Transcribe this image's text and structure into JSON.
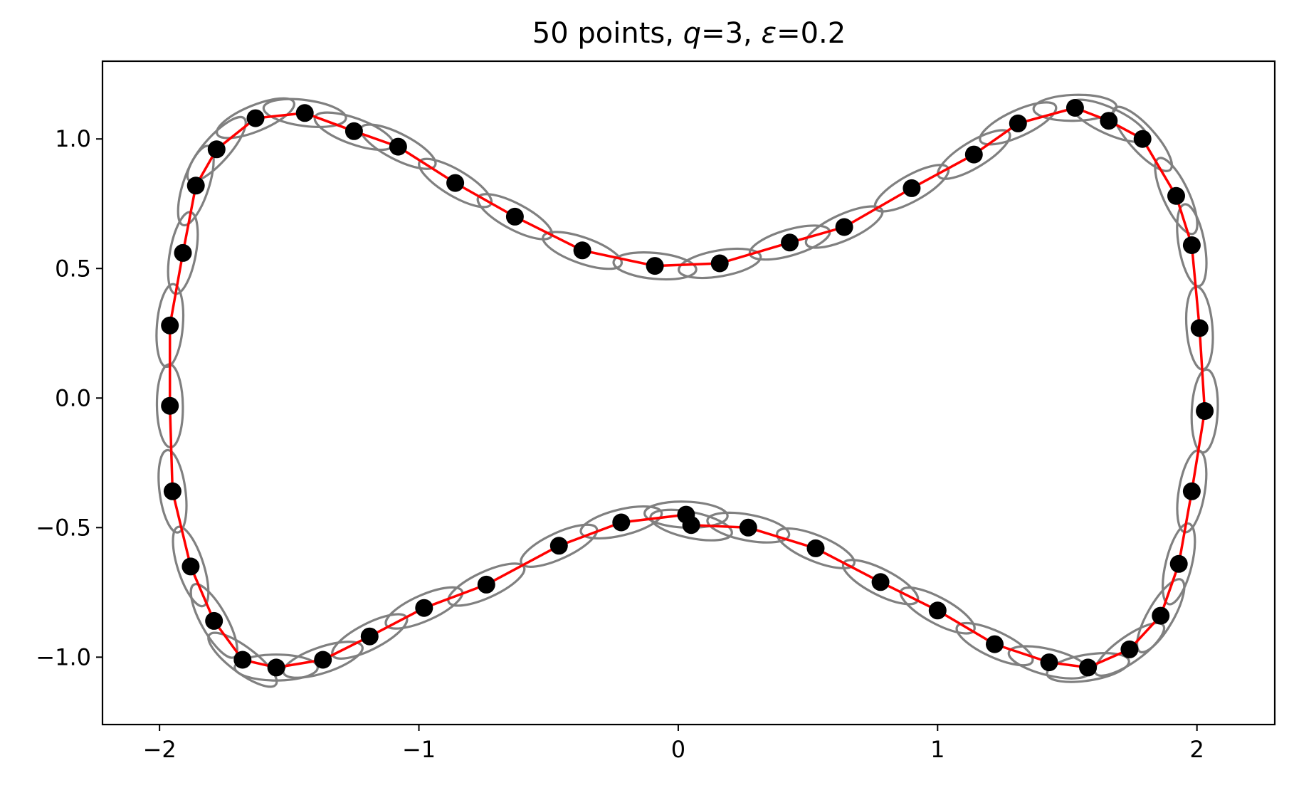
{
  "chart_data": {
    "type": "scatter",
    "title": "50 points, q=3, ε=0.2",
    "title_parts": [
      "50 points, ",
      "q",
      "=3, ",
      "ε",
      "=0.2"
    ],
    "xlabel": "",
    "ylabel": "",
    "xlim": [
      -2.22,
      2.3
    ],
    "ylim": [
      -1.26,
      1.3
    ],
    "xticks": [
      -2,
      -1,
      0,
      1,
      2
    ],
    "xtick_labels": [
      "−2",
      "−1",
      "0",
      "1",
      "2"
    ],
    "yticks": [
      1.0,
      0.5,
      0.0,
      -0.5,
      -1.0
    ],
    "ytick_labels": [
      "1.0",
      "0.5",
      "0.0",
      "−0.5",
      "−1.0"
    ],
    "grid": false,
    "colors": {
      "points": "#000000",
      "curve": "#ff0000",
      "ellipses": "#808080"
    },
    "points": [
      [
        -1.63,
        1.08
      ],
      [
        -1.44,
        1.1
      ],
      [
        -1.25,
        1.03
      ],
      [
        -1.08,
        0.97
      ],
      [
        -0.86,
        0.83
      ],
      [
        -0.63,
        0.7
      ],
      [
        -0.37,
        0.57
      ],
      [
        -0.09,
        0.51
      ],
      [
        0.16,
        0.52
      ],
      [
        0.43,
        0.6
      ],
      [
        0.64,
        0.66
      ],
      [
        0.9,
        0.81
      ],
      [
        1.14,
        0.94
      ],
      [
        1.31,
        1.06
      ],
      [
        1.53,
        1.12
      ],
      [
        1.66,
        1.07
      ],
      [
        1.79,
        1.0
      ],
      [
        1.92,
        0.78
      ],
      [
        1.98,
        0.59
      ],
      [
        2.01,
        0.27
      ],
      [
        2.03,
        -0.05
      ],
      [
        1.98,
        -0.36
      ],
      [
        1.93,
        -0.64
      ],
      [
        1.86,
        -0.84
      ],
      [
        1.74,
        -0.97
      ],
      [
        1.58,
        -1.04
      ],
      [
        1.43,
        -1.02
      ],
      [
        1.22,
        -0.95
      ],
      [
        1.0,
        -0.82
      ],
      [
        0.78,
        -0.71
      ],
      [
        0.53,
        -0.58
      ],
      [
        0.27,
        -0.5
      ],
      [
        0.05,
        -0.49
      ],
      [
        0.03,
        -0.45
      ],
      [
        -0.22,
        -0.48
      ],
      [
        -0.46,
        -0.57
      ],
      [
        -0.74,
        -0.72
      ],
      [
        -0.98,
        -0.81
      ],
      [
        -1.19,
        -0.92
      ],
      [
        -1.37,
        -1.01
      ],
      [
        -1.55,
        -1.04
      ],
      [
        -1.68,
        -1.01
      ],
      [
        -1.79,
        -0.86
      ],
      [
        -1.88,
        -0.65
      ],
      [
        -1.95,
        -0.36
      ],
      [
        -1.96,
        -0.03
      ],
      [
        -1.96,
        0.28
      ],
      [
        -1.91,
        0.56
      ],
      [
        -1.86,
        0.82
      ],
      [
        -1.78,
        0.96
      ]
    ],
    "ellipse_axes": {
      "along_curve": 0.16,
      "across_curve": 0.05
    }
  }
}
